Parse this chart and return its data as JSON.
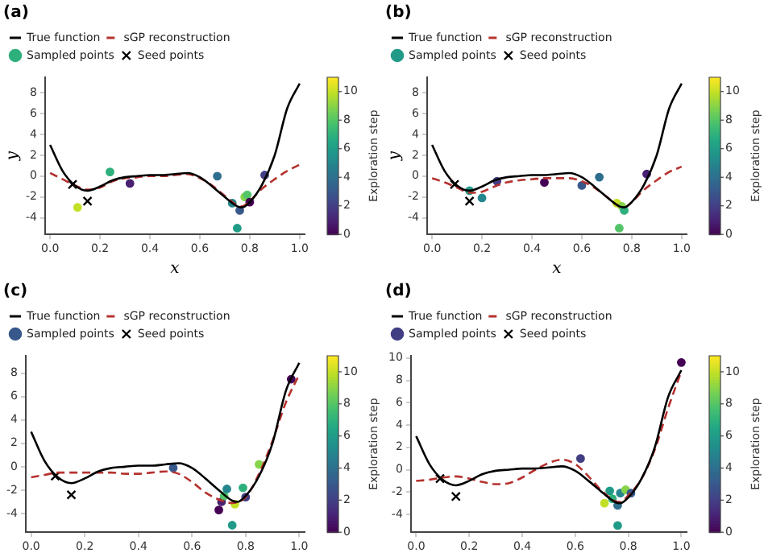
{
  "chart_data": [
    {
      "type": "line",
      "title": "(a)",
      "xlabel": "x",
      "ylabel": "y",
      "clabel": "Exploration step",
      "clim": [
        0,
        11
      ],
      "cticks": [
        0,
        2,
        4,
        6,
        8,
        10
      ],
      "legend": "top left",
      "grid": false,
      "xlim": [
        -0.02,
        1.02
      ],
      "xticks": [
        {
          "value": 0,
          "label": "0.0"
        },
        {
          "value": 0.2,
          "label": "0.2"
        },
        {
          "value": 0.4,
          "label": "0.4"
        },
        {
          "value": 0.6,
          "label": "0.6"
        },
        {
          "value": 0.8,
          "label": "0.8"
        },
        {
          "value": 1,
          "label": "1.0"
        }
      ],
      "ylim": [
        -5.6,
        9.5
      ],
      "yticks": [
        -4,
        -2,
        0,
        2,
        4,
        6,
        8
      ],
      "series": [
        {
          "name": "True function",
          "color": "#000000",
          "line_style": "solid",
          "x": [
            0,
            0.05,
            0.1,
            0.15,
            0.2,
            0.25,
            0.3,
            0.35,
            0.4,
            0.45,
            0.5,
            0.55,
            0.6,
            0.65,
            0.7,
            0.75,
            0.77,
            0.8,
            0.85,
            0.9,
            0.95,
            1.0
          ],
          "values": [
            3.0,
            0.5,
            -0.9,
            -1.4,
            -1.0,
            -0.4,
            -0.1,
            0.0,
            0.1,
            0.1,
            0.2,
            0.3,
            -0.1,
            -1.0,
            -2.0,
            -2.9,
            -3.0,
            -2.5,
            -0.8,
            2.0,
            6.5,
            8.9
          ]
        },
        {
          "name": "sGP reconstruction",
          "color": "#b5322e",
          "line_style": "dashed",
          "x": [
            0,
            0.05,
            0.1,
            0.15,
            0.2,
            0.25,
            0.3,
            0.35,
            0.4,
            0.45,
            0.5,
            0.55,
            0.6,
            0.65,
            0.7,
            0.75,
            0.77,
            0.8,
            0.85,
            0.9,
            0.95,
            1.0
          ],
          "values": [
            0.3,
            -0.3,
            -0.9,
            -1.3,
            -1.1,
            -0.5,
            -0.2,
            -0.1,
            0.0,
            0.0,
            0.1,
            0.2,
            -0.2,
            -0.9,
            -1.9,
            -2.8,
            -2.9,
            -2.4,
            -1.2,
            -0.3,
            0.5,
            1.1
          ]
        },
        {
          "name": "Sampled points",
          "type": "scatter",
          "marker": "circle",
          "x": [
            0.24,
            0.32,
            0.11,
            0.67,
            0.73,
            0.75,
            0.76,
            0.78,
            0.79,
            0.8,
            0.86
          ],
          "values": [
            0.4,
            -0.7,
            -3.0,
            0.0,
            -2.6,
            -5.0,
            -3.3,
            -2.0,
            -1.8,
            -2.5,
            0.1
          ],
          "cvalues": [
            7,
            1,
            10,
            4,
            5,
            6,
            3,
            9,
            8,
            0,
            2
          ],
          "colors": [
            "#2eb07d",
            "#482172",
            "#c3e026",
            "#2e6f8e",
            "#25868d",
            "#219b88",
            "#38588b",
            "#86d449",
            "#53c468",
            "#440154",
            "#423e84"
          ]
        },
        {
          "name": "Seed points",
          "type": "scatter",
          "marker": "cross",
          "color": "#000000",
          "x": [
            0.09,
            0.15
          ],
          "values": [
            -0.8,
            -2.4
          ]
        }
      ]
    },
    {
      "type": "line",
      "title": "(b)",
      "xlabel": "x",
      "ylabel": "y",
      "clabel": "Exploration step",
      "clim": [
        0,
        11
      ],
      "cticks": [
        0,
        2,
        4,
        6,
        8,
        10
      ],
      "legend": "top left",
      "grid": false,
      "xlim": [
        -0.02,
        1.02
      ],
      "xticks": [
        {
          "value": 0,
          "label": "0.0"
        },
        {
          "value": 0.2,
          "label": "0.2"
        },
        {
          "value": 0.4,
          "label": "0.4"
        },
        {
          "value": 0.6,
          "label": "0.6"
        },
        {
          "value": 0.8,
          "label": "0.8"
        },
        {
          "value": 1,
          "label": "1.0"
        }
      ],
      "ylim": [
        -5.6,
        9.5
      ],
      "yticks": [
        -4,
        -2,
        0,
        2,
        4,
        6,
        8
      ],
      "series": [
        {
          "name": "True function",
          "color": "#000000",
          "line_style": "solid",
          "x": [
            0,
            0.05,
            0.1,
            0.15,
            0.2,
            0.25,
            0.3,
            0.35,
            0.4,
            0.45,
            0.5,
            0.55,
            0.6,
            0.65,
            0.7,
            0.75,
            0.77,
            0.8,
            0.85,
            0.9,
            0.95,
            1.0
          ],
          "values": [
            3.0,
            0.5,
            -0.9,
            -1.4,
            -1.0,
            -0.4,
            -0.1,
            0.0,
            0.1,
            0.1,
            0.2,
            0.3,
            -0.1,
            -1.0,
            -2.0,
            -2.9,
            -3.0,
            -2.5,
            -0.8,
            2.0,
            6.5,
            8.9
          ]
        },
        {
          "name": "sGP reconstruction",
          "color": "#b5322e",
          "line_style": "dashed",
          "x": [
            0,
            0.05,
            0.1,
            0.15,
            0.2,
            0.25,
            0.3,
            0.35,
            0.4,
            0.45,
            0.5,
            0.55,
            0.6,
            0.65,
            0.7,
            0.75,
            0.77,
            0.8,
            0.85,
            0.9,
            0.95,
            1.0
          ],
          "values": [
            -0.2,
            -0.6,
            -1.1,
            -1.6,
            -1.5,
            -1.0,
            -0.6,
            -0.4,
            -0.3,
            -0.2,
            -0.2,
            -0.2,
            -0.5,
            -1.1,
            -2.0,
            -2.9,
            -3.0,
            -2.5,
            -1.3,
            -0.4,
            0.4,
            0.9
          ]
        },
        {
          "name": "Sampled points",
          "type": "scatter",
          "marker": "circle",
          "x": [
            0.15,
            0.2,
            0.26,
            0.45,
            0.6,
            0.67,
            0.74,
            0.75,
            0.76,
            0.77,
            0.86
          ],
          "values": [
            -1.4,
            -2.1,
            -0.5,
            -0.6,
            -0.9,
            -0.1,
            -2.6,
            -5.0,
            -2.9,
            -3.3,
            0.2
          ],
          "cvalues": [
            6,
            5,
            2,
            0,
            3,
            4,
            10,
            8,
            9,
            7,
            1
          ],
          "colors": [
            "#219b88",
            "#25868d",
            "#423e84",
            "#440154",
            "#38588b",
            "#2e6f8e",
            "#c3e026",
            "#53c468",
            "#86d449",
            "#2eb07d",
            "#482172"
          ]
        },
        {
          "name": "Seed points",
          "type": "scatter",
          "marker": "cross",
          "color": "#000000",
          "x": [
            0.09,
            0.15
          ],
          "values": [
            -0.8,
            -2.4
          ]
        }
      ]
    },
    {
      "type": "line",
      "title": "(c)",
      "clabel": "Exploration step",
      "clim": [
        0,
        11
      ],
      "cticks": [
        0,
        2,
        4,
        6,
        8,
        10
      ],
      "legend": "top left",
      "grid": false,
      "xlim": [
        -0.02,
        1.02
      ],
      "xticks": [
        {
          "value": 0,
          "label": "0.0"
        },
        {
          "value": 0.2,
          "label": "0.2"
        },
        {
          "value": 0.4,
          "label": "0.4"
        },
        {
          "value": 0.6,
          "label": "0.6"
        },
        {
          "value": 0.8,
          "label": "0.8"
        },
        {
          "value": 1,
          "label": "1.0"
        }
      ],
      "ylim": [
        -5.6,
        9.5
      ],
      "yticks": [
        -4,
        -2,
        0,
        2,
        4,
        6,
        8
      ],
      "series": [
        {
          "name": "True function",
          "color": "#000000",
          "line_style": "solid",
          "x": [
            0,
            0.05,
            0.1,
            0.15,
            0.2,
            0.25,
            0.3,
            0.35,
            0.4,
            0.45,
            0.5,
            0.55,
            0.6,
            0.65,
            0.7,
            0.75,
            0.77,
            0.8,
            0.85,
            0.9,
            0.95,
            1.0
          ],
          "values": [
            3.0,
            0.5,
            -0.9,
            -1.4,
            -1.0,
            -0.4,
            -0.1,
            0.0,
            0.1,
            0.1,
            0.2,
            0.3,
            -0.1,
            -1.0,
            -2.0,
            -2.9,
            -3.0,
            -2.5,
            -0.8,
            2.0,
            6.5,
            8.9
          ]
        },
        {
          "name": "sGP reconstruction",
          "color": "#b5322e",
          "line_style": "dashed",
          "x": [
            0,
            0.05,
            0.1,
            0.15,
            0.2,
            0.3,
            0.35,
            0.4,
            0.45,
            0.5,
            0.55,
            0.6,
            0.65,
            0.7,
            0.75,
            0.8,
            0.85,
            0.9,
            0.95,
            1.0
          ],
          "values": [
            -0.9,
            -0.7,
            -0.5,
            -0.5,
            -0.5,
            -0.5,
            -0.6,
            -0.6,
            -0.5,
            -0.4,
            -0.6,
            -1.3,
            -2.2,
            -2.8,
            -3.1,
            -2.6,
            -0.6,
            2.2,
            5.5,
            7.9
          ]
        },
        {
          "name": "Sampled points",
          "type": "scatter",
          "marker": "circle",
          "x": [
            0.53,
            0.7,
            0.71,
            0.72,
            0.73,
            0.75,
            0.76,
            0.79,
            0.8,
            0.85,
            0.97
          ],
          "values": [
            -0.1,
            -3.7,
            -3.0,
            -2.5,
            -1.9,
            -5.0,
            -3.2,
            -1.8,
            -2.6,
            0.2,
            7.5
          ],
          "cvalues": [
            3,
            0,
            1,
            8,
            5,
            6,
            10,
            7,
            2,
            9,
            0
          ],
          "colors": [
            "#38588b",
            "#440154",
            "#482172",
            "#53c468",
            "#25868d",
            "#219b88",
            "#c3e026",
            "#2eb07d",
            "#423e84",
            "#86d449",
            "#440154"
          ]
        },
        {
          "name": "Seed points",
          "type": "scatter",
          "marker": "cross",
          "color": "#000000",
          "x": [
            0.09,
            0.15
          ],
          "values": [
            -0.8,
            -2.4
          ]
        }
      ]
    },
    {
      "type": "line",
      "title": "(d)",
      "clabel": "Exploration step",
      "clim": [
        0,
        11
      ],
      "cticks": [
        0,
        2,
        4,
        6,
        8,
        10
      ],
      "legend": "top left",
      "grid": false,
      "xlim": [
        -0.02,
        1.02
      ],
      "xticks": [
        {
          "value": 0,
          "label": "0.0"
        },
        {
          "value": 0.2,
          "label": "0.2"
        },
        {
          "value": 0.4,
          "label": "0.4"
        },
        {
          "value": 0.6,
          "label": "0.6"
        },
        {
          "value": 0.8,
          "label": "0.8"
        },
        {
          "value": 1,
          "label": "1.0"
        }
      ],
      "ylim": [
        -5.6,
        10.2
      ],
      "yticks": [
        -4,
        -2,
        0,
        2,
        4,
        6,
        8,
        10
      ],
      "series": [
        {
          "name": "True function",
          "color": "#000000",
          "line_style": "solid",
          "x": [
            0,
            0.05,
            0.1,
            0.15,
            0.2,
            0.25,
            0.3,
            0.35,
            0.4,
            0.45,
            0.5,
            0.55,
            0.6,
            0.65,
            0.7,
            0.75,
            0.77,
            0.8,
            0.85,
            0.9,
            0.95,
            1.0
          ],
          "values": [
            3.0,
            0.5,
            -0.9,
            -1.4,
            -1.0,
            -0.4,
            -0.1,
            0.0,
            0.1,
            0.1,
            0.2,
            0.3,
            -0.1,
            -1.0,
            -2.0,
            -2.9,
            -3.0,
            -2.5,
            -0.8,
            2.0,
            6.5,
            8.9
          ]
        },
        {
          "name": "sGP reconstruction",
          "color": "#b5322e",
          "line_style": "dashed",
          "x": [
            0,
            0.05,
            0.1,
            0.15,
            0.2,
            0.25,
            0.3,
            0.35,
            0.4,
            0.45,
            0.5,
            0.55,
            0.6,
            0.65,
            0.7,
            0.75,
            0.77,
            0.8,
            0.85,
            0.9,
            0.95,
            1.0
          ],
          "values": [
            -1.0,
            -0.9,
            -0.7,
            -0.6,
            -0.8,
            -1.1,
            -1.3,
            -1.2,
            -0.7,
            0.0,
            0.6,
            0.9,
            0.5,
            -0.6,
            -1.9,
            -2.8,
            -2.9,
            -2.3,
            -0.8,
            1.8,
            5.5,
            8.8
          ]
        },
        {
          "name": "Sampled points",
          "type": "scatter",
          "marker": "circle",
          "x": [
            0.62,
            0.71,
            0.73,
            0.74,
            0.76,
            0.76,
            0.77,
            0.79,
            0.81,
            1.0
          ],
          "values": [
            1.0,
            -3.0,
            -1.9,
            -2.6,
            -3.2,
            -5.0,
            -2.1,
            -1.8,
            -2.1,
            9.6
          ],
          "cvalues": [
            2,
            10,
            6,
            7,
            4,
            6,
            5,
            9,
            3,
            0
          ],
          "colors": [
            "#423e84",
            "#c3e026",
            "#219b88",
            "#2eb07d",
            "#2e6f8e",
            "#219b88",
            "#25868d",
            "#86d449",
            "#38588b",
            "#440154"
          ]
        },
        {
          "name": "Seed points",
          "type": "scatter",
          "marker": "cross",
          "color": "#000000",
          "x": [
            0.09,
            0.15
          ],
          "values": [
            -0.8,
            -2.4
          ]
        }
      ]
    }
  ]
}
